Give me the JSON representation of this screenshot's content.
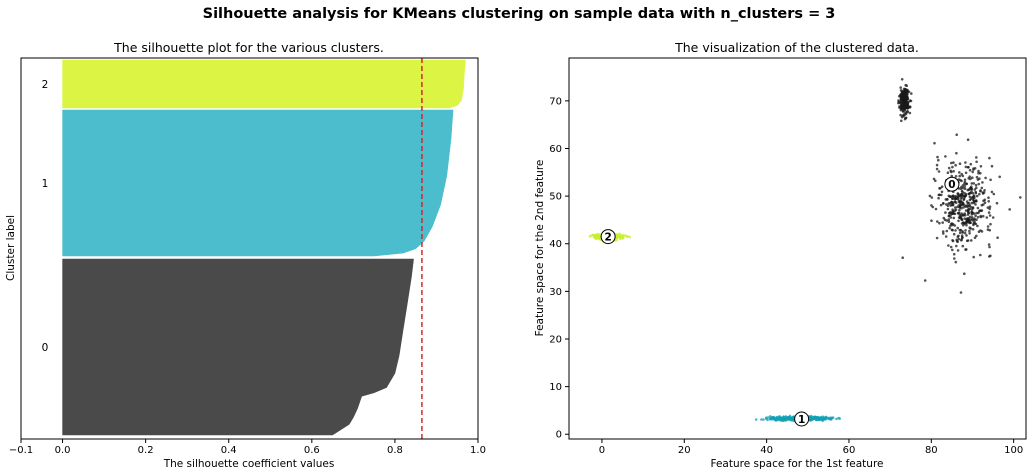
{
  "suptitle": "Silhouette analysis for KMeans clustering on sample data with n_clusters = 3",
  "chart_data": [
    {
      "type": "area",
      "title": "The silhouette plot for the various clusters.",
      "xlabel": "The silhouette coefficient values",
      "ylabel": "Cluster label",
      "xlim": [
        -0.1,
        1.0
      ],
      "xticks": [
        -0.1,
        0.0,
        0.2,
        0.4,
        0.6,
        0.8,
        1.0
      ],
      "xtick_labels": [
        "−0.1",
        "0.0",
        "0.2",
        "0.4",
        "0.6",
        "0.8",
        "1.0"
      ],
      "average_silhouette_score": 0.865,
      "average_line_color": "#d62728",
      "clusters": [
        {
          "label": "0",
          "color": "#4a4a4a",
          "silhouette_profile": [
            [
              0,
              0.65
            ],
            [
              0.03,
              0.67
            ],
            [
              0.06,
              0.69
            ],
            [
              0.1,
              0.7
            ],
            [
              0.15,
              0.71
            ],
            [
              0.22,
              0.72
            ],
            [
              0.24,
              0.75
            ],
            [
              0.27,
              0.78
            ],
            [
              0.35,
              0.8
            ],
            [
              0.45,
              0.81
            ],
            [
              0.6,
              0.82
            ],
            [
              0.75,
              0.83
            ],
            [
              0.9,
              0.84
            ],
            [
              1.0,
              0.845
            ]
          ]
        },
        {
          "label": "1",
          "color": "#4bbdcc",
          "silhouette_profile": [
            [
              0,
              0.75
            ],
            [
              0.02,
              0.82
            ],
            [
              0.05,
              0.85
            ],
            [
              0.1,
              0.87
            ],
            [
              0.2,
              0.89
            ],
            [
              0.35,
              0.91
            ],
            [
              0.55,
              0.925
            ],
            [
              0.8,
              0.935
            ],
            [
              1.0,
              0.94
            ]
          ]
        },
        {
          "label": "2",
          "color": "#dcf545",
          "silhouette_profile": [
            [
              0,
              0.93
            ],
            [
              0.05,
              0.95
            ],
            [
              0.15,
              0.96
            ],
            [
              0.4,
              0.965
            ],
            [
              0.7,
              0.967
            ],
            [
              1.0,
              0.97
            ]
          ]
        }
      ]
    },
    {
      "type": "scatter",
      "title": "The visualization of the clustered data.",
      "xlabel": "Feature space for the 1st feature",
      "ylabel": "Feature space for the 2nd feature",
      "xlim": [
        -8,
        103
      ],
      "ylim": [
        -1,
        79
      ],
      "xticks": [
        0,
        20,
        40,
        60,
        80,
        100
      ],
      "yticks": [
        0,
        10,
        20,
        30,
        40,
        50,
        60,
        70
      ],
      "grid": false,
      "clusters": [
        {
          "label": "0",
          "color": "#1a1a1a",
          "groups": [
            {
              "center_x": 88,
              "center_y": 48,
              "std_x": 3.5,
              "std_y": 4.5,
              "count": 450
            },
            {
              "center_x": 73.5,
              "center_y": 70,
              "std_x": 0.6,
              "std_y": 1.6,
              "count": 200
            }
          ],
          "centroid": [
            85,
            52.5
          ]
        },
        {
          "label": "1",
          "color": "#14a0b4",
          "groups": [
            {
              "center_x": 48,
              "center_y": 3.3,
              "std_x": 3.6,
              "std_y": 0.18,
              "count": 450
            }
          ],
          "centroid": [
            48.5,
            3.2
          ]
        },
        {
          "label": "2",
          "color": "#c8ef2a",
          "groups": [
            {
              "center_x": 1.5,
              "center_y": 41.5,
              "std_x": 1.8,
              "std_y": 0.35,
              "count": 200
            }
          ],
          "centroid": [
            1.5,
            41.5
          ]
        }
      ]
    }
  ]
}
